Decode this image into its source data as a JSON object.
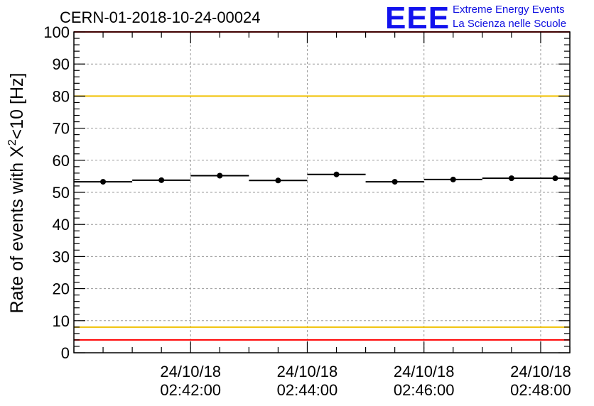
{
  "title": "CERN-01-2018-10-24-00024",
  "logo": {
    "mark": "EEE",
    "line1": "Extreme Energy Events",
    "line2": "La Scienza nelle Scuole",
    "color": "#1212ee"
  },
  "chart_data": {
    "type": "scatter",
    "ylabel_prefix": "Rate of events with X",
    "ylabel_sup": "2",
    "ylabel_suffix": "<10 [Hz]",
    "ylim": [
      0,
      100
    ],
    "yticks": [
      0,
      10,
      20,
      30,
      40,
      50,
      60,
      70,
      80,
      90,
      100
    ],
    "xlim": [
      "2018-10-24 02:40:00",
      "2018-10-24 02:48:30"
    ],
    "xticks": [
      {
        "t": "2018-10-24 02:42:00",
        "date": "24/10/18",
        "time": "02:42:00"
      },
      {
        "t": "2018-10-24 02:44:00",
        "date": "24/10/18",
        "time": "02:44:00"
      },
      {
        "t": "2018-10-24 02:46:00",
        "date": "24/10/18",
        "time": "02:46:00"
      },
      {
        "t": "2018-10-24 02:48:00",
        "date": "24/10/18",
        "time": "02:48:00"
      }
    ],
    "grid": true,
    "points": [
      {
        "x_start": "2018-10-24 02:40:00",
        "x_end": "2018-10-24 02:41:00",
        "x": "2018-10-24 02:40:30",
        "y": 53.3,
        "err": 0.8
      },
      {
        "x_start": "2018-10-24 02:41:00",
        "x_end": "2018-10-24 02:42:00",
        "x": "2018-10-24 02:41:30",
        "y": 53.8,
        "err": 0.8
      },
      {
        "x_start": "2018-10-24 02:42:00",
        "x_end": "2018-10-24 02:43:00",
        "x": "2018-10-24 02:42:30",
        "y": 55.2,
        "err": 0.8
      },
      {
        "x_start": "2018-10-24 02:43:00",
        "x_end": "2018-10-24 02:44:00",
        "x": "2018-10-24 02:43:30",
        "y": 53.7,
        "err": 0.8
      },
      {
        "x_start": "2018-10-24 02:44:00",
        "x_end": "2018-10-24 02:45:00",
        "x": "2018-10-24 02:44:30",
        "y": 55.6,
        "err": 0.8
      },
      {
        "x_start": "2018-10-24 02:45:00",
        "x_end": "2018-10-24 02:46:00",
        "x": "2018-10-24 02:45:30",
        "y": 53.3,
        "err": 0.8
      },
      {
        "x_start": "2018-10-24 02:46:00",
        "x_end": "2018-10-24 02:47:00",
        "x": "2018-10-24 02:46:30",
        "y": 54.0,
        "err": 0.8
      },
      {
        "x_start": "2018-10-24 02:47:00",
        "x_end": "2018-10-24 02:48:00",
        "x": "2018-10-24 02:47:30",
        "y": 54.4,
        "err": 0.8
      },
      {
        "x_start": "2018-10-24 02:48:00",
        "x_end": "2018-10-24 02:48:30",
        "x": "2018-10-24 02:48:15",
        "y": 54.4,
        "err": 0.8
      }
    ],
    "reference_lines": [
      {
        "y": 100,
        "color": "#ff0000"
      },
      {
        "y": 80,
        "color": "#f0c000"
      },
      {
        "y": 8,
        "color": "#f0c000"
      },
      {
        "y": 4,
        "color": "#ff0000"
      }
    ]
  }
}
